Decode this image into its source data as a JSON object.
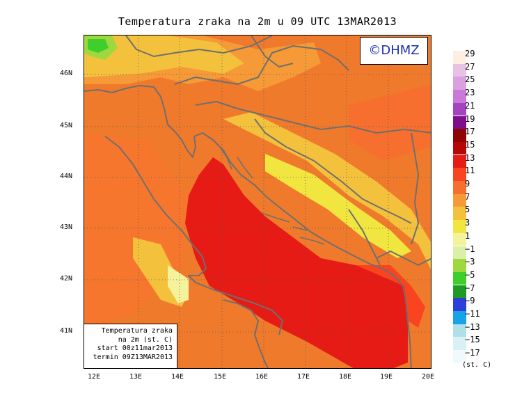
{
  "title": "Temperatura zraka na 2m u 09 UTC 13MAR2013",
  "copyright": "©DHMZ",
  "info_box": {
    "line1": "Temperatura zraka",
    "line2": "na 2m (st. C)",
    "line3": "start 00z11mar2013",
    "line4": "termin 09Z13MAR2013"
  },
  "axes": {
    "lat_labels": [
      "46N",
      "45N",
      "44N",
      "43N",
      "42N",
      "41N"
    ],
    "lon_labels": [
      "12E",
      "13E",
      "14E",
      "15E",
      "16E",
      "17E",
      "18E",
      "19E",
      "20E"
    ]
  },
  "legend": {
    "unit": "(st. C)",
    "labels": [
      "29",
      "27",
      "25",
      "23",
      "21",
      "19",
      "17",
      "15",
      "13",
      "11",
      "9",
      "7",
      "5",
      "3",
      "1",
      "−1",
      "−3",
      "−5",
      "−7",
      "−9",
      "−11",
      "−13",
      "−15",
      "−17"
    ],
    "colors": [
      "#fdeee0",
      "#e8c2e2",
      "#dba0e0",
      "#c97ad6",
      "#a544c0",
      "#7e0f8a",
      "#8e0404",
      "#b50707",
      "#e61b16",
      "#fa4420",
      "#f66f2e",
      "#f59a36",
      "#f4c13c",
      "#f1e53f",
      "#f4f29b",
      "#dcefa8",
      "#9ed83e",
      "#3ecf2d",
      "#1f9b24",
      "#2c3fd8",
      "#18a3e8",
      "#b0dfe8",
      "#d9f0f4",
      "#f0fafc"
    ]
  }
}
